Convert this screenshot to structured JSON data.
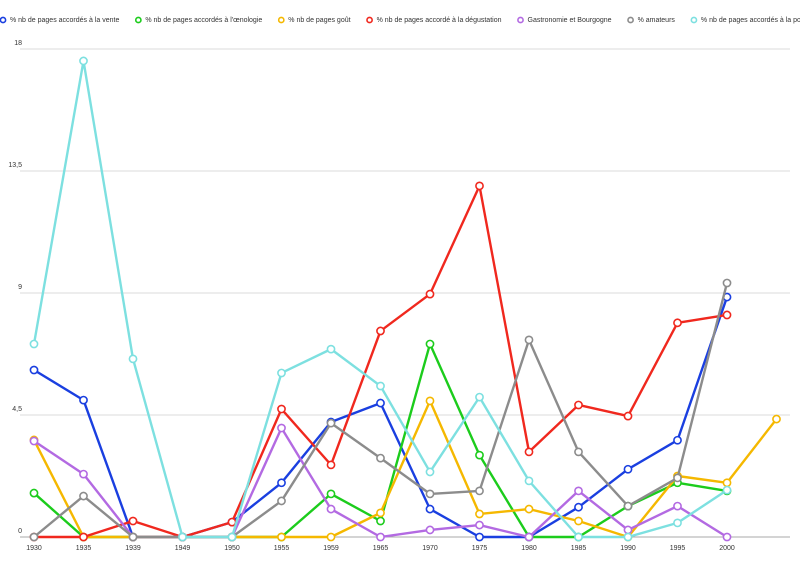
{
  "chart_data": {
    "type": "line",
    "categories": [
      "1930",
      "1935",
      "1939",
      "1949",
      "1950",
      "1955",
      "1959",
      "1965",
      "1970",
      "1975",
      "1980",
      "1985",
      "1990",
      "1995",
      "2000",
      null
    ],
    "series": [
      {
        "name": "% nb de pages accordés à la vente",
        "color": "#1a3fe0",
        "values": [
          6.16,
          5.05,
          0,
          0,
          0.55,
          2.0,
          4.24,
          4.94,
          1.03,
          0,
          0,
          1.1,
          2.5,
          3.57,
          8.85,
          null
        ]
      },
      {
        "name": "% nb de pages accordés à l'œnologie",
        "color": "#1ccc1c",
        "values": [
          1.62,
          0,
          0,
          0,
          0,
          0,
          1.59,
          0.59,
          7.12,
          3.02,
          0,
          0,
          1.14,
          2.0,
          1.7,
          null
        ]
      },
      {
        "name": "% nb de pages goût",
        "color": "#f5b800",
        "values": [
          3.58,
          0,
          0,
          0,
          0,
          0,
          0,
          0.89,
          5.02,
          0.85,
          1.03,
          0.59,
          0,
          2.25,
          2.0,
          4.35
        ]
      },
      {
        "name": "% nb de pages accordé à la dégustation",
        "color": "#f0281e",
        "values": [
          0,
          0,
          0.59,
          0,
          0.55,
          4.72,
          2.66,
          7.6,
          8.96,
          12.95,
          3.14,
          4.87,
          4.46,
          7.9,
          8.19,
          null
        ]
      },
      {
        "name": "Gastronomie et Bourgogne",
        "color": "#b36ae2",
        "values": [
          3.54,
          2.32,
          0,
          0,
          0,
          4.02,
          1.03,
          0,
          0.26,
          0.44,
          0,
          1.7,
          0.26,
          1.14,
          0,
          null
        ]
      },
      {
        "name": "% amateurs",
        "color": "#8c8c8c",
        "values": [
          0,
          1.51,
          0,
          0,
          0,
          1.33,
          4.2,
          2.91,
          1.59,
          1.7,
          7.27,
          3.14,
          1.14,
          2.18,
          9.37,
          null
        ]
      },
      {
        "name": "% nb de pages accordés à la politique",
        "color": "#7de0e0",
        "values": [
          7.12,
          17.56,
          6.57,
          0,
          0,
          6.05,
          6.93,
          5.57,
          2.4,
          5.16,
          2.07,
          0,
          0,
          0.52,
          1.73,
          null
        ]
      }
    ],
    "ylim": [
      0,
      18
    ],
    "yticks": [
      0,
      {
        "value": 4.5,
        "label": "4,5"
      },
      9,
      {
        "value": 13.5,
        "label": "13,5"
      },
      18
    ],
    "grid": true
  }
}
